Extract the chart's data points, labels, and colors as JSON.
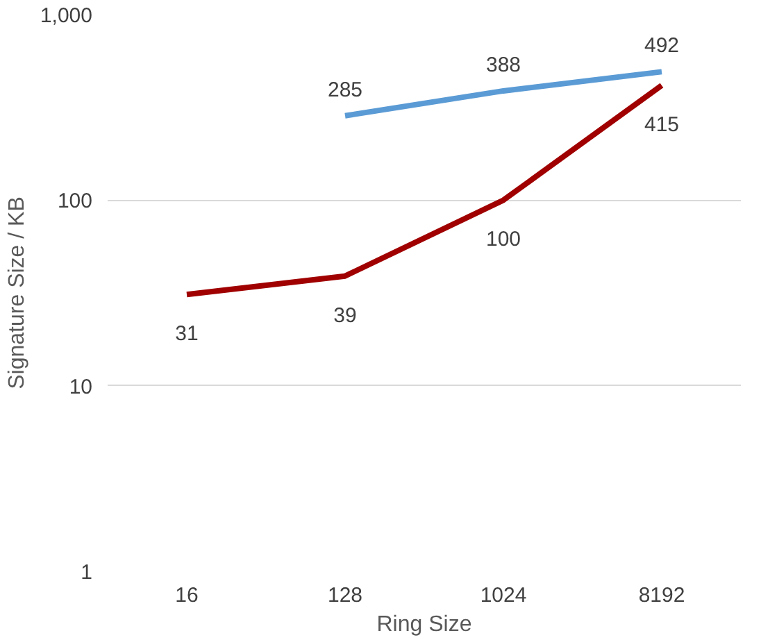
{
  "chart_data": {
    "type": "line",
    "xlabel": "Ring Size",
    "ylabel": "Signature Size / KB",
    "categories": [
      "16",
      "128",
      "1024",
      "8192"
    ],
    "series": [
      {
        "color": "#5b9bd5",
        "values": [
          null,
          285,
          388,
          492
        ]
      },
      {
        "color": "#a00000",
        "values": [
          31,
          39,
          100,
          415
        ]
      }
    ],
    "log": "y",
    "ylim": [
      1,
      1000
    ],
    "yticks": [
      1,
      10,
      100,
      {
        "value": 1000,
        "label": "1,000"
      }
    ],
    "grid": "y",
    "data_labels": true,
    "marker": "none",
    "line_style": "solid"
  }
}
